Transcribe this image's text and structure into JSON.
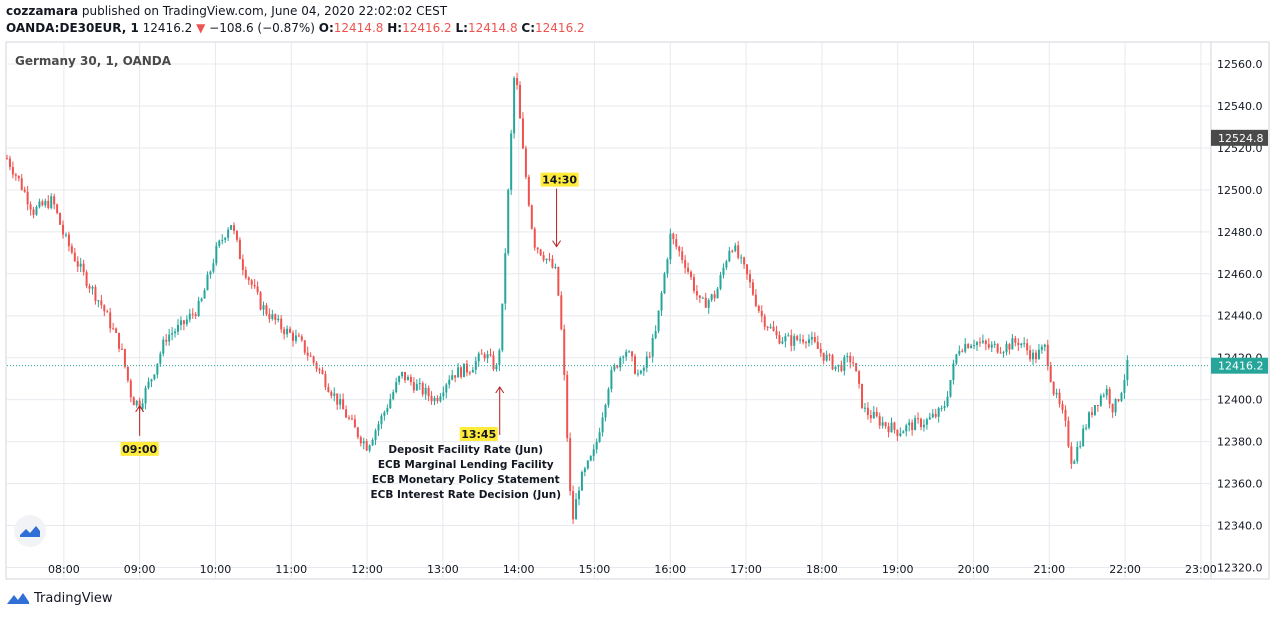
{
  "header": {
    "publisher": "cozzamara",
    "published_text": " published on TradingView.com, June 04, 2020 22:02:02 CEST",
    "symbol": "OANDA:DE30EUR, 1",
    "last": "12416.2",
    "change_arrow": "▼",
    "change": "−108.6 (−0.87%)",
    "o_label": "O:",
    "o_value": "12414.8",
    "h_label": "H:",
    "h_value": "12416.2",
    "l_label": "L:",
    "l_value": "12414.8",
    "c_label": "C:",
    "c_value": "12416.2"
  },
  "brand": {
    "name": "TradingView",
    "logo_icon": "tradingview-logo-icon"
  },
  "colors": {
    "up": "#26a69a",
    "down": "#ef5350",
    "grid": "#e6e9ee",
    "axis_text": "#131722",
    "annotation": "#b71c1c",
    "highlight": "#ffeb3b",
    "price_line": "#26a69a",
    "dark_label": "#4a4a4a"
  },
  "chart_data": {
    "type": "candlestick",
    "title": "Germany 30, 1, OANDA",
    "timeframe": "1 minute",
    "x_ticks": [
      "08:00",
      "09:00",
      "10:00",
      "11:00",
      "12:00",
      "13:00",
      "14:00",
      "15:00",
      "16:00",
      "17:00",
      "18:00",
      "19:00",
      "20:00",
      "21:00",
      "22:00",
      "23:00"
    ],
    "x_range_hours": [
      7.25,
      23.12
    ],
    "y_ticks": [
      12320.0,
      12340.0,
      12360.0,
      12380.0,
      12400.0,
      12420.0,
      12440.0,
      12460.0,
      12480.0,
      12500.0,
      12520.0,
      12540.0,
      12560.0
    ],
    "y_range": [
      12315,
      12570
    ],
    "last_price": 12416.2,
    "last_price_label": "12416.2",
    "marked_price": 12524.8,
    "marked_price_label": "12524.8",
    "price_path": [
      [
        7.25,
        12515
      ],
      [
        7.4,
        12505
      ],
      [
        7.6,
        12490
      ],
      [
        7.85,
        12495
      ],
      [
        8.0,
        12478
      ],
      [
        8.25,
        12460
      ],
      [
        8.5,
        12445
      ],
      [
        8.75,
        12425
      ],
      [
        8.9,
        12400
      ],
      [
        9.0,
        12398
      ],
      [
        9.15,
        12410
      ],
      [
        9.35,
        12430
      ],
      [
        9.55,
        12435
      ],
      [
        9.8,
        12445
      ],
      [
        10.0,
        12470
      ],
      [
        10.2,
        12485
      ],
      [
        10.35,
        12465
      ],
      [
        10.6,
        12445
      ],
      [
        10.85,
        12435
      ],
      [
        11.1,
        12428
      ],
      [
        11.35,
        12415
      ],
      [
        11.6,
        12400
      ],
      [
        11.85,
        12385
      ],
      [
        12.0,
        12378
      ],
      [
        12.2,
        12392
      ],
      [
        12.45,
        12412
      ],
      [
        12.7,
        12405
      ],
      [
        12.9,
        12400
      ],
      [
        13.1,
        12412
      ],
      [
        13.35,
        12415
      ],
      [
        13.55,
        12422
      ],
      [
        13.72,
        12414
      ],
      [
        13.78,
        12440
      ],
      [
        13.85,
        12490
      ],
      [
        13.95,
        12560
      ],
      [
        14.05,
        12520
      ],
      [
        14.2,
        12475
      ],
      [
        14.35,
        12468
      ],
      [
        14.5,
        12460
      ],
      [
        14.58,
        12425
      ],
      [
        14.7,
        12340
      ],
      [
        14.8,
        12360
      ],
      [
        15.0,
        12375
      ],
      [
        15.2,
        12410
      ],
      [
        15.4,
        12425
      ],
      [
        15.6,
        12410
      ],
      [
        15.8,
        12430
      ],
      [
        16.0,
        12478
      ],
      [
        16.2,
        12465
      ],
      [
        16.4,
        12445
      ],
      [
        16.6,
        12450
      ],
      [
        16.8,
        12475
      ],
      [
        17.0,
        12460
      ],
      [
        17.2,
        12440
      ],
      [
        17.4,
        12430
      ],
      [
        17.6,
        12428
      ],
      [
        17.8,
        12430
      ],
      [
        18.0,
        12422
      ],
      [
        18.2,
        12415
      ],
      [
        18.4,
        12420
      ],
      [
        18.55,
        12395
      ],
      [
        18.75,
        12390
      ],
      [
        19.0,
        12385
      ],
      [
        19.2,
        12388
      ],
      [
        19.4,
        12390
      ],
      [
        19.6,
        12395
      ],
      [
        19.8,
        12425
      ],
      [
        20.0,
        12428
      ],
      [
        20.2,
        12425
      ],
      [
        20.4,
        12425
      ],
      [
        20.6,
        12428
      ],
      [
        20.8,
        12420
      ],
      [
        20.95,
        12425
      ],
      [
        21.05,
        12405
      ],
      [
        21.2,
        12390
      ],
      [
        21.3,
        12370
      ],
      [
        21.45,
        12385
      ],
      [
        21.6,
        12398
      ],
      [
        21.75,
        12405
      ],
      [
        21.85,
        12395
      ],
      [
        21.95,
        12405
      ],
      [
        22.03,
        12416
      ]
    ],
    "annotations": [
      {
        "time_label": "09:00",
        "hour": 9.0,
        "price": 12398,
        "direction": "up",
        "notes": []
      },
      {
        "time_label": "13:45",
        "hour": 13.75,
        "price": 12407,
        "direction": "up",
        "notes": [
          "Deposit Facility Rate (Jun)",
          "ECB Marginal Lending Facility",
          "ECB Monetary Policy Statement",
          "ECB Interest Rate Decision (Jun)"
        ]
      },
      {
        "time_label": "14:30",
        "hour": 14.5,
        "price": 12472,
        "direction": "down",
        "notes": []
      }
    ],
    "watermark_icon": "tradingview-watermark-icon"
  }
}
